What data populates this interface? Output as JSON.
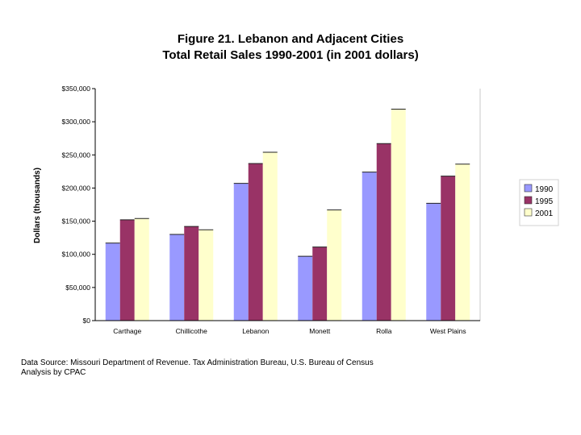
{
  "chart_data": {
    "type": "bar",
    "title": "Figure 21. Lebanon and Adjacent Cities",
    "subtitle": "Total Retail Sales 1990-2001 (in 2001 dollars)",
    "xlabel": "",
    "ylabel": "Dollars (thousands)",
    "categories": [
      "Carthage",
      "Chillicothe",
      "Lebanon",
      "Monett",
      "Rolla",
      "West Plains"
    ],
    "series": [
      {
        "name": "1990",
        "color": "#9999ff",
        "values": [
          117000,
          130000,
          207000,
          97000,
          224000,
          177000
        ]
      },
      {
        "name": "1995",
        "color": "#993366",
        "values": [
          152000,
          142000,
          237000,
          111000,
          267000,
          218000
        ]
      },
      {
        "name": "2001",
        "color": "#ffffcc",
        "values": [
          154000,
          137000,
          254000,
          167000,
          319000,
          236000
        ]
      }
    ],
    "ylim": [
      0,
      350000
    ],
    "yticks": [
      0,
      50000,
      100000,
      150000,
      200000,
      250000,
      300000,
      350000
    ],
    "ytick_labels": [
      "$0",
      "$50,000",
      "$100,000",
      "$150,000",
      "$200,000",
      "$250,000",
      "$300,000",
      "$350,000"
    ],
    "grid": false,
    "legend_position": "right",
    "background": "#ffffff"
  },
  "footer": {
    "source_line": "Data Source: Missouri Department of Revenue.  Tax Administration Bureau, U.S. Bureau of Census",
    "analysis_line": "Analysis by CPAC"
  }
}
